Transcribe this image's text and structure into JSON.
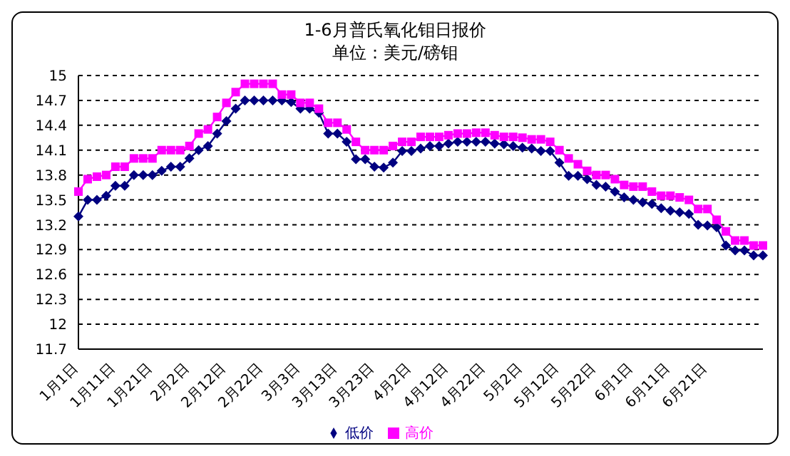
{
  "chart_data": {
    "type": "line",
    "title": "1-6月普氏氧化钼日报价",
    "subtitle": "单位：美元/磅钼",
    "categories": [
      "1月1日",
      null,
      null,
      null,
      "1月11日",
      null,
      null,
      null,
      "1月21日",
      null,
      null,
      null,
      "2月2日",
      null,
      null,
      null,
      "2月12日",
      null,
      null,
      null,
      "2月22日",
      null,
      null,
      null,
      "3月3日",
      null,
      null,
      null,
      "3月13日",
      null,
      null,
      null,
      "3月23日",
      null,
      null,
      null,
      "4月2日",
      null,
      null,
      null,
      "4月12日",
      null,
      null,
      null,
      "4月22日",
      null,
      null,
      null,
      "5月2日",
      null,
      null,
      null,
      "5月12日",
      null,
      null,
      null,
      "5月22日",
      null,
      null,
      null,
      "6月1日",
      null,
      null,
      null,
      "6月11日",
      null,
      null,
      null,
      "6月21日",
      null,
      null,
      null,
      null,
      null,
      null
    ],
    "series": [
      {
        "name": "低价",
        "color": "#000080",
        "marker": "diamond",
        "values": [
          13.3,
          13.5,
          13.5,
          13.55,
          13.67,
          13.67,
          13.8,
          13.8,
          13.8,
          13.85,
          13.9,
          13.9,
          14.0,
          14.1,
          14.15,
          14.3,
          14.45,
          14.6,
          14.7,
          14.7,
          14.7,
          14.7,
          14.7,
          14.68,
          14.6,
          14.6,
          14.55,
          14.3,
          14.3,
          14.2,
          13.99,
          13.99,
          13.9,
          13.89,
          13.95,
          14.09,
          14.09,
          14.12,
          14.15,
          14.15,
          14.18,
          14.2,
          14.2,
          14.2,
          14.2,
          14.18,
          14.17,
          14.15,
          14.13,
          14.12,
          14.09,
          14.09,
          13.95,
          13.79,
          13.79,
          13.75,
          13.68,
          13.66,
          13.6,
          13.53,
          13.5,
          13.47,
          13.45,
          13.4,
          13.37,
          13.35,
          13.33,
          13.2,
          13.19,
          13.17,
          12.95,
          12.89,
          12.89,
          12.83,
          12.83
        ]
      },
      {
        "name": "高价",
        "color": "#ff00ff",
        "marker": "square",
        "values": [
          13.6,
          13.75,
          13.78,
          13.8,
          13.9,
          13.9,
          14.0,
          14.0,
          14.0,
          14.1,
          14.1,
          14.1,
          14.15,
          14.3,
          14.35,
          14.5,
          14.67,
          14.8,
          14.9,
          14.9,
          14.9,
          14.9,
          14.77,
          14.77,
          14.67,
          14.67,
          14.6,
          14.43,
          14.43,
          14.35,
          14.2,
          14.1,
          14.1,
          14.1,
          14.15,
          14.2,
          14.2,
          14.26,
          14.26,
          14.26,
          14.28,
          14.3,
          14.3,
          14.31,
          14.31,
          14.28,
          14.26,
          14.26,
          14.25,
          14.23,
          14.23,
          14.2,
          14.1,
          14.0,
          13.93,
          13.85,
          13.8,
          13.8,
          13.75,
          13.68,
          13.66,
          13.66,
          13.6,
          13.55,
          13.55,
          13.53,
          13.5,
          13.39,
          13.39,
          13.26,
          13.12,
          13.01,
          13.01,
          12.95,
          12.95
        ]
      }
    ],
    "ylim": [
      11.7,
      15
    ],
    "yticks": [
      11.7,
      12,
      12.3,
      12.6,
      12.9,
      13.2,
      13.5,
      13.8,
      14.1,
      14.4,
      14.7,
      15
    ],
    "grid": "y",
    "legend": "bottom",
    "line_style": "solid"
  }
}
